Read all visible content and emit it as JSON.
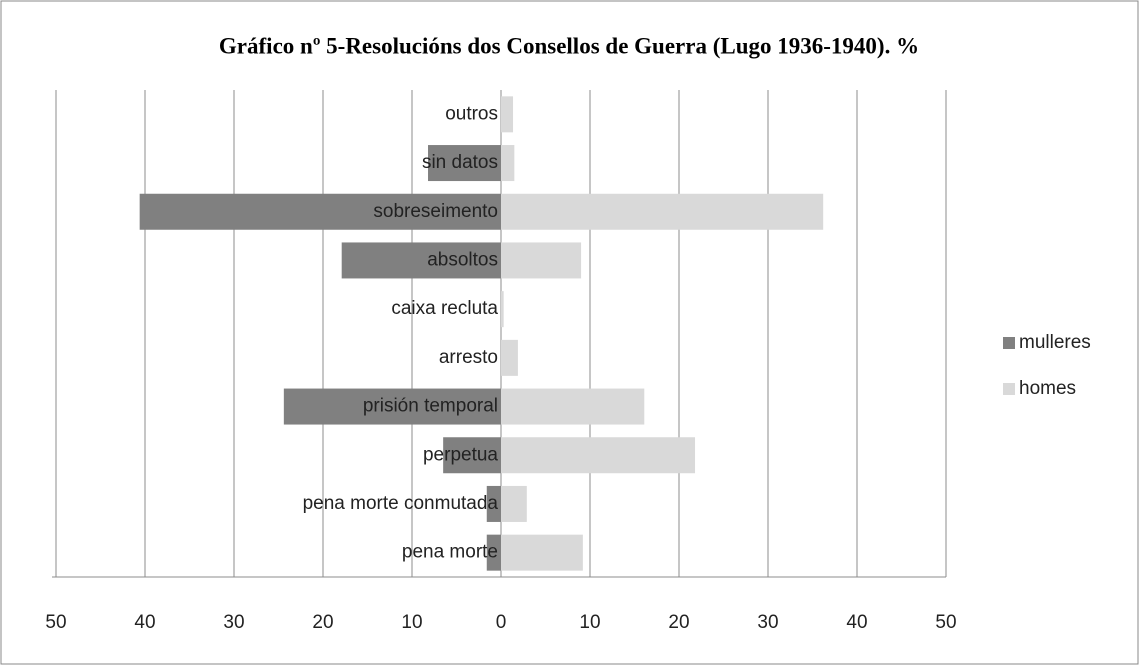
{
  "chart_data": {
    "type": "butterfly-bar",
    "title": "Gráfico nº 5-Resolucións dos Consellos de Guerra (Lugo 1936-1940). %",
    "categories": [
      "outros",
      "sin datos",
      "sobreseimento",
      "absoltos",
      "caixa recluta",
      "arresto",
      "prisión temporal",
      "perpetua",
      "pena morte conmutada",
      "pena morte"
    ],
    "series": [
      {
        "name": "mulleres",
        "color": "#808080",
        "values": [
          0,
          -8.2,
          -40.6,
          -17.9,
          0,
          0,
          -24.4,
          -6.5,
          -1.6,
          -1.6
        ]
      },
      {
        "name": "homes",
        "color": "#d9d9d9",
        "values": [
          1.35,
          1.5,
          36.2,
          9.0,
          0.3,
          1.9,
          16.1,
          21.8,
          2.9,
          9.2
        ]
      }
    ],
    "xlim": [
      -50,
      50
    ],
    "xticks": [
      {
        "value": -50,
        "label": "50"
      },
      {
        "value": -40,
        "label": "40"
      },
      {
        "value": -30,
        "label": "30"
      },
      {
        "value": -20,
        "label": "20"
      },
      {
        "value": -10,
        "label": "10"
      },
      0,
      10,
      20,
      30,
      40,
      50
    ],
    "grid": true,
    "legend": "right"
  }
}
